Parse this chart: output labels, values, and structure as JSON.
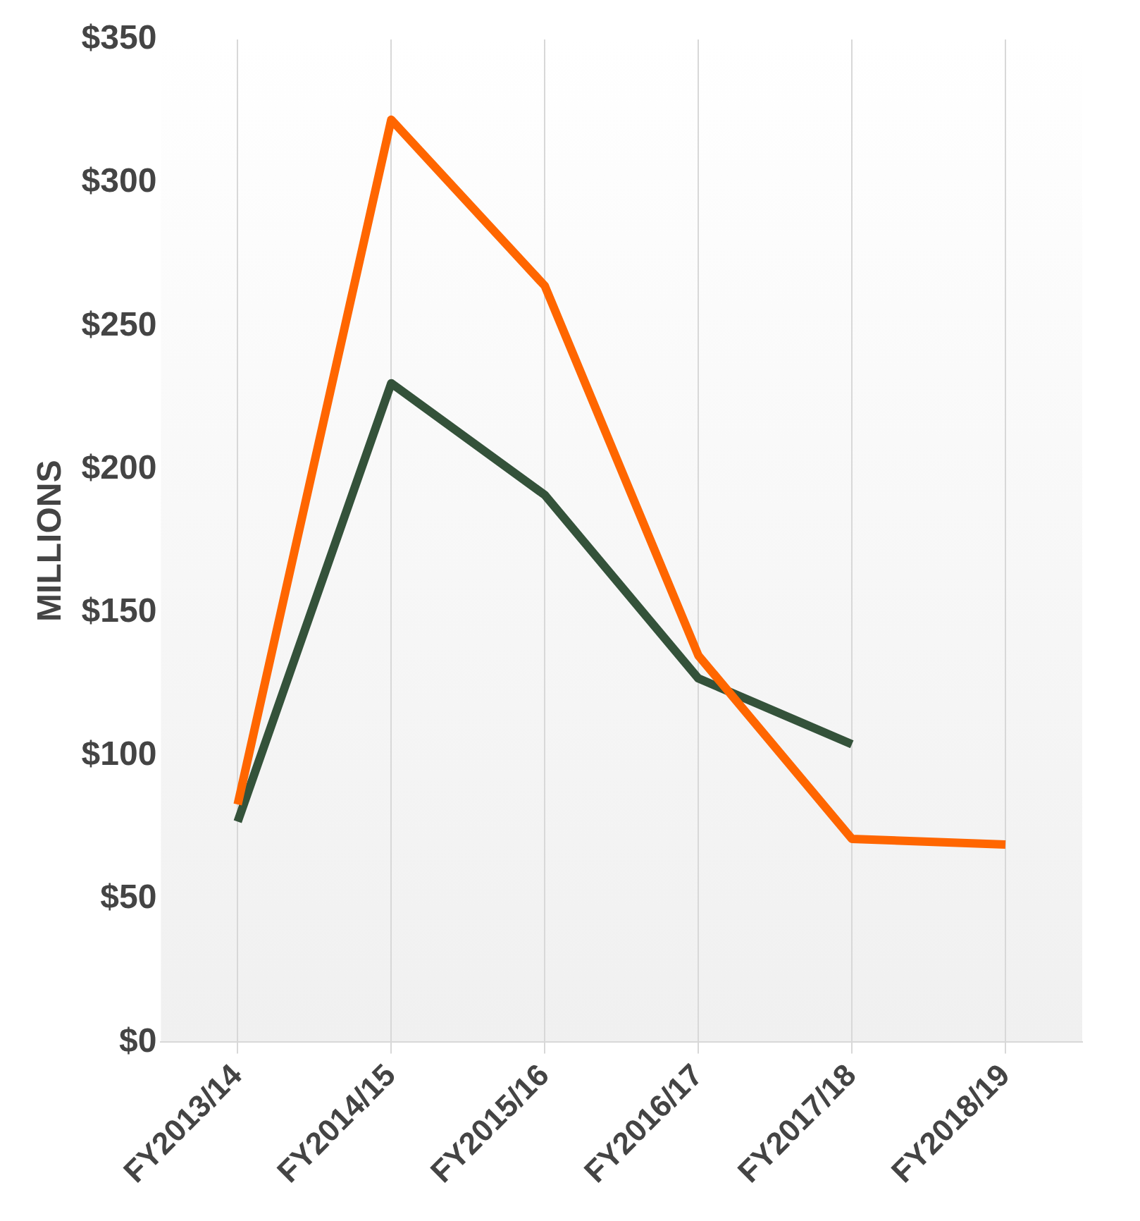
{
  "chart_data": {
    "type": "line",
    "ylabel": "MILLIONS",
    "categories": [
      "FY2013/14",
      "FY2014/15",
      "FY2015/16",
      "FY2016/17",
      "FY2017/18",
      "FY2018/19"
    ],
    "series": [
      {
        "color": "#ff6600",
        "values": [
          83,
          322,
          264,
          135,
          71,
          69
        ]
      },
      {
        "color": "#34523a",
        "values": [
          77,
          230,
          191,
          127,
          104,
          null
        ]
      }
    ],
    "ylim": [
      0,
      350
    ],
    "yticks": [
      {
        "value": 0,
        "label": "$0"
      },
      {
        "value": 50,
        "label": "$50"
      },
      {
        "value": 100,
        "label": "$100"
      },
      {
        "value": 150,
        "label": "$150"
      },
      {
        "value": 200,
        "label": "$200"
      },
      {
        "value": 250,
        "label": "$250"
      },
      {
        "value": 300,
        "label": "$300"
      },
      {
        "value": 350,
        "label": "$350"
      }
    ],
    "grid": "x",
    "legend": false,
    "marker": "none",
    "line_style": "solid"
  }
}
